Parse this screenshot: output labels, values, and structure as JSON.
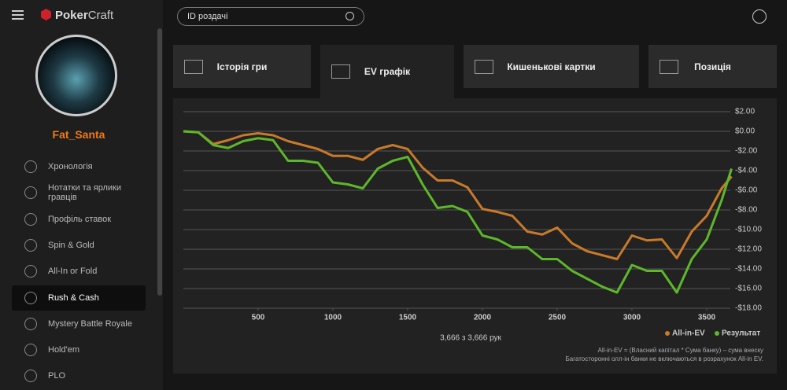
{
  "header": {
    "brand_a": "Poker",
    "brand_b": "Craft",
    "search_placeholder": "ID роздачі"
  },
  "sidebar": {
    "username": "Fat_Santa",
    "items": [
      "Хронологія",
      "Нотатки та ярлики гравців",
      "Профіль ставок",
      "Spin & Gold",
      "All-In or Fold",
      "Rush & Cash",
      "Mystery Battle Royale",
      "Hold'em",
      "PLO"
    ],
    "active": "Rush & Cash"
  },
  "tabs": [
    "Історія гри",
    "EV графік",
    "Кишенькові картки",
    "Позиція"
  ],
  "active_tab": "EV графік",
  "chart_data": {
    "type": "line",
    "x": [
      0,
      100,
      200,
      300,
      400,
      500,
      600,
      700,
      800,
      900,
      1000,
      1100,
      1200,
      1300,
      1400,
      1500,
      1600,
      1700,
      1800,
      1900,
      2000,
      2100,
      2200,
      2300,
      2400,
      2500,
      2600,
      2700,
      2800,
      2900,
      3000,
      3100,
      3200,
      3300,
      3400,
      3500,
      3600,
      3666
    ],
    "series": [
      {
        "name": "All-in-EV",
        "color": "#c87a2a",
        "values": [
          0,
          -0.1,
          -1.3,
          -0.9,
          -0.4,
          -0.2,
          -0.4,
          -1.0,
          -1.4,
          -1.8,
          -2.5,
          -2.5,
          -2.9,
          -1.8,
          -1.4,
          -1.8,
          -3.7,
          -5.0,
          -5.0,
          -5.7,
          -7.9,
          -8.2,
          -8.6,
          -10.2,
          -10.5,
          -9.8,
          -11.4,
          -12.2,
          -12.6,
          -13.0,
          -10.6,
          -11.1,
          -11.0,
          -12.9,
          -10.2,
          -8.6,
          -5.8,
          -4.6
        ]
      },
      {
        "name": "Результат",
        "color": "#5cb82a",
        "values": [
          0,
          -0.1,
          -1.4,
          -1.7,
          -1.0,
          -0.7,
          -0.9,
          -3.0,
          -3.0,
          -3.2,
          -5.2,
          -5.4,
          -5.8,
          -3.8,
          -3.0,
          -2.6,
          -5.4,
          -7.8,
          -7.6,
          -8.2,
          -10.6,
          -11.0,
          -11.8,
          -11.8,
          -13.0,
          -13.0,
          -14.2,
          -15.0,
          -15.8,
          -16.4,
          -13.6,
          -14.2,
          -14.2,
          -16.4,
          -13.0,
          -11.0,
          -7.0,
          -3.8
        ]
      }
    ],
    "xlim": [
      0,
      3700
    ],
    "xticks": [
      500,
      1000,
      1500,
      2000,
      2500,
      3000,
      3500
    ],
    "ylim": [
      -18,
      2
    ],
    "yticks": [
      {
        "value": 2,
        "label": "$2.00"
      },
      {
        "value": 0,
        "label": "$0.00"
      },
      {
        "value": -2,
        "label": "-$2.00"
      },
      {
        "value": -4,
        "label": "-$4.00"
      },
      {
        "value": -6,
        "label": "-$6.00"
      },
      {
        "value": -8,
        "label": "-$8.00"
      },
      {
        "value": -10,
        "label": "-$10.00"
      },
      {
        "value": -12,
        "label": "-$12.00"
      },
      {
        "value": -14,
        "label": "-$14.00"
      },
      {
        "value": -16,
        "label": "-$16.00"
      },
      {
        "value": -18,
        "label": "-$18.00"
      }
    ],
    "grid": true,
    "hands_text": "3,666 з 3,666 рук",
    "notes": [
      "All-in-EV = (Власний капітал * Сума банку) – сума внеску",
      "Багатосторонні олл-ін банки не включаються в розрахунок All-in EV."
    ]
  }
}
